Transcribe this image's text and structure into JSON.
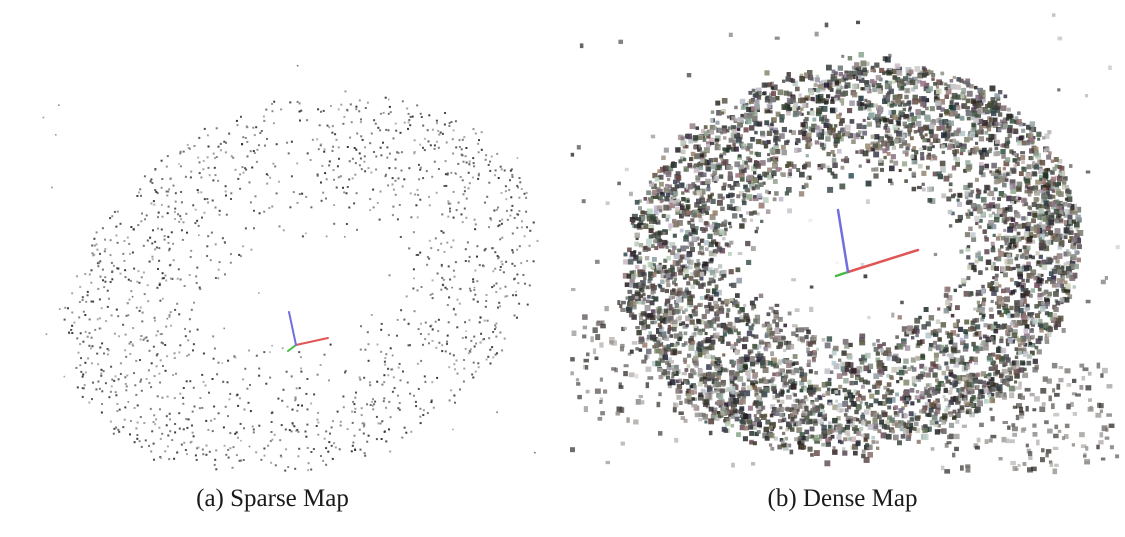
{
  "figure": {
    "panels": [
      {
        "id": "sparse",
        "caption": "(a) Sparse Map",
        "point_style": "sparse-grey-dots",
        "axes_colors": {
          "x": "#e05555",
          "y": "#44bb44",
          "z": "#6f6fe0"
        }
      },
      {
        "id": "dense",
        "caption": "(b) Dense Map",
        "point_style": "dense-colored-squares",
        "axes_colors": {
          "x": "#e05555",
          "y": "#44bb44",
          "z": "#6f6fe0"
        }
      }
    ]
  },
  "colors": {
    "background": "#ffffff",
    "caption_text": "#1a1a1a"
  }
}
